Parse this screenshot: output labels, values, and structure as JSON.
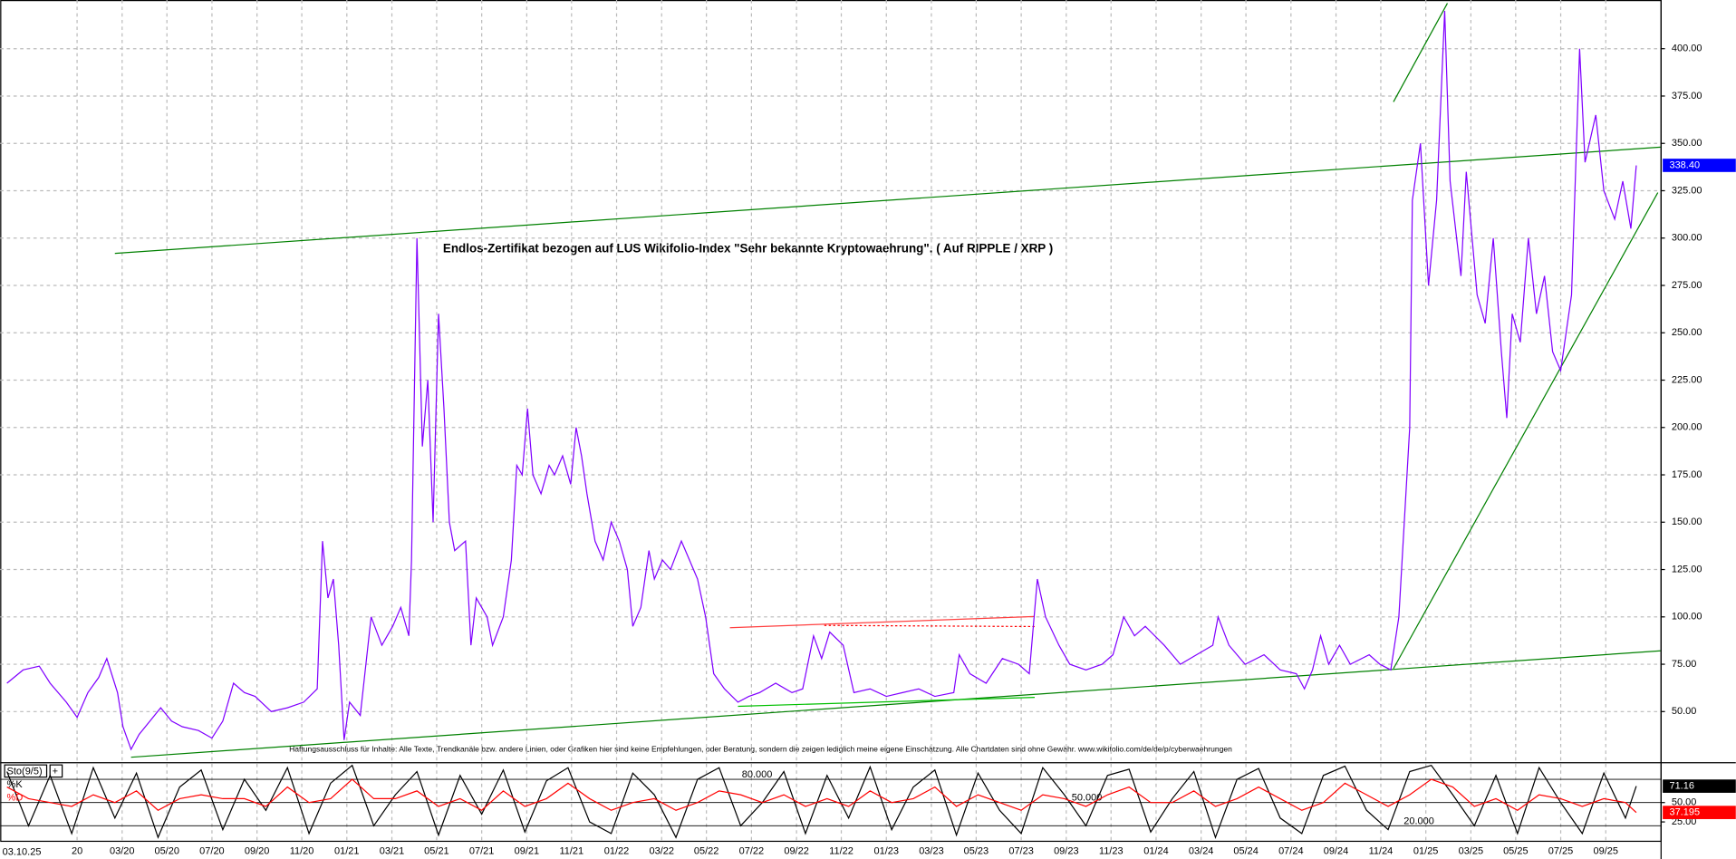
{
  "chart_data": [
    {
      "type": "line",
      "title": "Endlos-Zertifikat bezogen auf LUS Wikifolio-Index \"Sehr bekannte Kryptowaehrung\". ( Auf RIPPLE / XRP )",
      "footnote": "Haftungsausschluss für Inhalte: Alle Texte, Trendkanäle bzw. andere Linien, oder Grafiken hier sind keine Empfehlungen, oder Beratung, sondern die zeigen lediglich meine eigene Einschätzung. Alle Chartdaten sind ohne Gewähr.  www.wikifolio.com/de/de/p/cyberwaehrungen",
      "date_label": "03.10.25",
      "xlim": [
        2019.715,
        2025.87
      ],
      "ylim": [
        23.6,
        425.7
      ],
      "grid": true,
      "xticks": [
        {
          "value": 2020,
          "label": "20"
        },
        {
          "value": 2020.167,
          "label": "03/20"
        },
        {
          "value": 2020.333,
          "label": "05/20"
        },
        {
          "value": 2020.5,
          "label": "07/20"
        },
        {
          "value": 2020.667,
          "label": "09/20"
        },
        {
          "value": 2020.833,
          "label": "11/20"
        },
        {
          "value": 2021,
          "label": "01/21"
        },
        {
          "value": 2021.167,
          "label": "03/21"
        },
        {
          "value": 2021.333,
          "label": "05/21"
        },
        {
          "value": 2021.5,
          "label": "07/21"
        },
        {
          "value": 2021.667,
          "label": "09/21"
        },
        {
          "value": 2021.833,
          "label": "11/21"
        },
        {
          "value": 2022,
          "label": "01/22"
        },
        {
          "value": 2022.167,
          "label": "03/22"
        },
        {
          "value": 2022.333,
          "label": "05/22"
        },
        {
          "value": 2022.5,
          "label": "07/22"
        },
        {
          "value": 2022.667,
          "label": "09/22"
        },
        {
          "value": 2022.833,
          "label": "11/22"
        },
        {
          "value": 2023,
          "label": "01/23"
        },
        {
          "value": 2023.167,
          "label": "03/23"
        },
        {
          "value": 2023.333,
          "label": "05/23"
        },
        {
          "value": 2023.5,
          "label": "07/23"
        },
        {
          "value": 2023.667,
          "label": "09/23"
        },
        {
          "value": 2023.833,
          "label": "11/23"
        },
        {
          "value": 2024,
          "label": "01/24"
        },
        {
          "value": 2024.167,
          "label": "03/24"
        },
        {
          "value": 2024.333,
          "label": "05/24"
        },
        {
          "value": 2024.5,
          "label": "07/24"
        },
        {
          "value": 2024.667,
          "label": "09/24"
        },
        {
          "value": 2024.833,
          "label": "11/24"
        },
        {
          "value": 2025,
          "label": "01/25"
        },
        {
          "value": 2025.167,
          "label": "03/25"
        },
        {
          "value": 2025.333,
          "label": "05/25"
        },
        {
          "value": 2025.5,
          "label": "07/25"
        },
        {
          "value": 2025.667,
          "label": "09/25"
        }
      ],
      "yticks": [
        {
          "value": 50,
          "label": "50.00"
        },
        {
          "value": 75,
          "label": "75.00"
        },
        {
          "value": 100,
          "label": "100.00"
        },
        {
          "value": 125,
          "label": "125.00"
        },
        {
          "value": 150,
          "label": "150.00"
        },
        {
          "value": 175,
          "label": "175.00"
        },
        {
          "value": 200,
          "label": "200.00"
        },
        {
          "value": 225,
          "label": "225.00"
        },
        {
          "value": 250,
          "label": "250.00"
        },
        {
          "value": 275,
          "label": "275.00"
        },
        {
          "value": 300,
          "label": "300.00"
        },
        {
          "value": 325,
          "label": "325.00"
        },
        {
          "value": 350,
          "label": "350.00"
        },
        {
          "value": 375,
          "label": "375.00"
        },
        {
          "value": 400,
          "label": "400.00"
        }
      ],
      "color": "#8000ff",
      "last_value_label": "338.40",
      "x": [
        2019.74,
        2019.8,
        2019.86,
        2019.9,
        2019.96,
        2020.0,
        2020.04,
        2020.08,
        2020.11,
        2020.15,
        2020.17,
        2020.2,
        2020.23,
        2020.27,
        2020.31,
        2020.35,
        2020.39,
        2020.45,
        2020.5,
        2020.54,
        2020.58,
        2020.62,
        2020.66,
        2020.72,
        2020.78,
        2020.84,
        2020.89,
        2020.91,
        2020.93,
        2020.95,
        2020.97,
        2020.99,
        2021.01,
        2021.05,
        2021.09,
        2021.13,
        2021.17,
        2021.2,
        2021.23,
        2021.24,
        2021.26,
        2021.28,
        2021.3,
        2021.32,
        2021.34,
        2021.36,
        2021.38,
        2021.4,
        2021.44,
        2021.46,
        2021.48,
        2021.52,
        2021.54,
        2021.58,
        2021.61,
        2021.63,
        2021.65,
        2021.67,
        2021.69,
        2021.72,
        2021.75,
        2021.77,
        2021.8,
        2021.83,
        2021.85,
        2021.87,
        2021.89,
        2021.92,
        2021.95,
        2021.98,
        2022.01,
        2022.04,
        2022.06,
        2022.09,
        2022.12,
        2022.14,
        2022.17,
        2022.2,
        2022.24,
        2022.27,
        2022.3,
        2022.33,
        2022.36,
        2022.4,
        2022.45,
        2022.49,
        2022.53,
        2022.59,
        2022.65,
        2022.69,
        2022.73,
        2022.76,
        2022.79,
        2022.84,
        2022.88,
        2022.94,
        2023.0,
        2023.06,
        2023.12,
        2023.18,
        2023.25,
        2023.27,
        2023.31,
        2023.37,
        2023.43,
        2023.49,
        2023.53,
        2023.56,
        2023.59,
        2023.64,
        2023.68,
        2023.74,
        2023.8,
        2023.84,
        2023.88,
        2023.92,
        2023.96,
        2024.03,
        2024.09,
        2024.15,
        2024.21,
        2024.23,
        2024.27,
        2024.33,
        2024.4,
        2024.46,
        2024.52,
        2024.55,
        2024.58,
        2024.61,
        2024.64,
        2024.68,
        2024.72,
        2024.79,
        2024.83,
        2024.87,
        2024.9,
        2024.92,
        2024.94,
        2024.95,
        2024.98,
        2025.01,
        2025.04,
        2025.07,
        2025.09,
        2025.13,
        2025.15,
        2025.19,
        2025.22,
        2025.25,
        2025.28,
        2025.3,
        2025.32,
        2025.35,
        2025.38,
        2025.41,
        2025.44,
        2025.47,
        2025.5,
        2025.54,
        2025.57,
        2025.59,
        2025.63,
        2025.66,
        2025.7,
        2025.73,
        2025.76,
        2025.78
      ],
      "values": [
        65,
        72,
        74,
        65,
        55,
        47,
        60,
        68,
        78,
        60,
        42,
        30,
        38,
        45,
        52,
        45,
        42,
        40,
        36,
        45,
        65,
        60,
        58,
        50,
        52,
        55,
        62,
        140,
        110,
        120,
        85,
        35,
        55,
        48,
        100,
        85,
        95,
        105,
        90,
        130,
        300,
        190,
        225,
        150,
        260,
        210,
        150,
        135,
        140,
        85,
        110,
        100,
        85,
        100,
        130,
        180,
        175,
        210,
        175,
        165,
        180,
        175,
        185,
        170,
        200,
        185,
        165,
        140,
        130,
        150,
        140,
        125,
        95,
        105,
        135,
        120,
        130,
        125,
        140,
        130,
        120,
        100,
        70,
        62,
        55,
        58,
        60,
        65,
        60,
        62,
        90,
        78,
        92,
        85,
        60,
        62,
        58,
        60,
        62,
        58,
        60,
        80,
        70,
        65,
        78,
        75,
        70,
        120,
        100,
        85,
        75,
        72,
        75,
        80,
        100,
        90,
        95,
        85,
        75,
        80,
        85,
        100,
        85,
        75,
        80,
        72,
        70,
        62,
        72,
        90,
        75,
        85,
        75,
        80,
        75,
        72,
        100,
        150,
        200,
        320,
        350,
        275,
        320,
        420,
        330,
        280,
        335,
        270,
        255,
        300,
        240,
        205,
        260,
        245,
        300,
        260,
        280,
        240,
        230,
        270,
        400,
        340,
        365,
        325,
        310,
        330,
        305,
        338.4
      ],
      "trendlines": [
        {
          "color": "#008000",
          "x": [
            2020.14,
            2025.87
          ],
          "y": [
            291.9,
            348.0
          ]
        },
        {
          "color": "#008000",
          "x": [
            2020.2,
            2025.87
          ],
          "y": [
            25.9,
            82.1
          ]
        },
        {
          "color": "#008000",
          "x": [
            2024.88,
            2025.86
          ],
          "y": [
            72.7,
            324.0
          ]
        },
        {
          "color": "#008000",
          "x": [
            2024.88,
            2025.08
          ],
          "y": [
            371.9,
            424.0
          ]
        },
        {
          "color": "#00c000",
          "x": [
            2022.45,
            2023.55
          ],
          "y": [
            52.8,
            57.5
          ]
        },
        {
          "color": "#ff4040",
          "x": [
            2022.42,
            2023.55
          ],
          "y": [
            94.3,
            100.2
          ]
        },
        {
          "color": "#ff0000",
          "dashed": true,
          "x": [
            2022.77,
            2023.55
          ],
          "y": [
            95.5,
            94.9
          ]
        }
      ]
    },
    {
      "type": "stochastic",
      "title": "Sto(9/5)",
      "ylim": [
        0,
        100
      ],
      "yticks": [
        {
          "value": 50,
          "label": "50.00"
        },
        {
          "value": 25,
          "label": "25.00"
        }
      ],
      "levels": [
        {
          "value": 80,
          "label": "80.000"
        },
        {
          "value": 50,
          "label": "50.000"
        },
        {
          "value": 20,
          "label": "20.000"
        }
      ],
      "x": [
        2019.74,
        2019.82,
        2019.9,
        2019.98,
        2020.06,
        2020.14,
        2020.22,
        2020.3,
        2020.38,
        2020.46,
        2020.54,
        2020.62,
        2020.7,
        2020.78,
        2020.86,
        2020.94,
        2021.02,
        2021.1,
        2021.18,
        2021.26,
        2021.34,
        2021.42,
        2021.5,
        2021.58,
        2021.66,
        2021.74,
        2021.82,
        2021.9,
        2021.98,
        2022.06,
        2022.14,
        2022.22,
        2022.3,
        2022.38,
        2022.46,
        2022.54,
        2022.62,
        2022.7,
        2022.78,
        2022.86,
        2022.94,
        2023.02,
        2023.1,
        2023.18,
        2023.26,
        2023.34,
        2023.42,
        2023.5,
        2023.58,
        2023.66,
        2023.74,
        2023.82,
        2023.9,
        2023.98,
        2024.06,
        2024.14,
        2024.22,
        2024.3,
        2024.38,
        2024.46,
        2024.54,
        2024.62,
        2024.7,
        2024.78,
        2024.86,
        2024.94,
        2025.02,
        2025.1,
        2025.18,
        2025.26,
        2025.34,
        2025.42,
        2025.5,
        2025.58,
        2025.66,
        2025.74,
        2025.78
      ],
      "series": [
        {
          "name": "%K",
          "color": "#000000",
          "values": [
            90,
            20,
            85,
            10,
            95,
            30,
            88,
            5,
            70,
            92,
            15,
            80,
            40,
            95,
            10,
            75,
            98,
            20,
            60,
            90,
            8,
            85,
            35,
            92,
            12,
            78,
            95,
            25,
            10,
            88,
            60,
            5,
            80,
            95,
            20,
            50,
            90,
            10,
            85,
            30,
            96,
            15,
            70,
            92,
            8,
            88,
            40,
            10,
            95,
            60,
            20,
            85,
            93,
            12,
            55,
            90,
            5,
            80,
            94,
            30,
            10,
            85,
            97,
            40,
            15,
            90,
            98,
            60,
            20,
            85,
            10,
            95,
            50,
            10,
            88,
            30,
            71.16
          ]
        },
        {
          "name": "%D",
          "color": "#ff0000",
          "values": [
            70,
            55,
            50,
            45,
            60,
            50,
            65,
            40,
            55,
            60,
            55,
            55,
            45,
            70,
            50,
            55,
            80,
            55,
            55,
            65,
            45,
            55,
            40,
            65,
            45,
            55,
            75,
            55,
            40,
            50,
            55,
            40,
            50,
            65,
            60,
            50,
            60,
            45,
            55,
            45,
            65,
            50,
            55,
            70,
            45,
            60,
            50,
            40,
            60,
            55,
            45,
            60,
            70,
            50,
            50,
            65,
            45,
            55,
            70,
            55,
            40,
            50,
            75,
            60,
            45,
            60,
            80,
            70,
            45,
            55,
            40,
            60,
            55,
            45,
            55,
            50,
            37.195
          ]
        }
      ]
    }
  ]
}
